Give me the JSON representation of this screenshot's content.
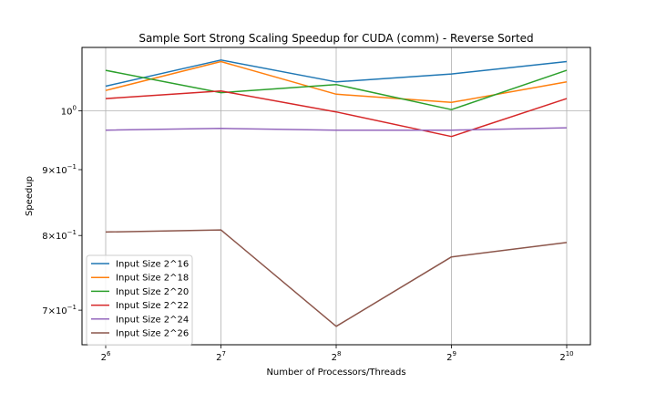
{
  "chart_data": {
    "type": "line",
    "title": "Sample Sort Strong Scaling Speedup for CUDA (comm) - Reverse Sorted",
    "xlabel": "Number of Processors/Threads",
    "ylabel": "Speedup",
    "x": [
      64,
      128,
      256,
      512,
      1024
    ],
    "x_tick_labels": [
      {
        "base": "2",
        "exp": "6"
      },
      {
        "base": "2",
        "exp": "7"
      },
      {
        "base": "2",
        "exp": "8"
      },
      {
        "base": "2",
        "exp": "9"
      },
      {
        "base": "2",
        "exp": "10"
      }
    ],
    "xscale": "log2",
    "yscale": "log",
    "ylim": [
      0.658,
      1.12
    ],
    "y_ticks": [
      {
        "value": 1.0,
        "base": "10",
        "exp": "0",
        "prefix": ""
      },
      {
        "value": 0.9,
        "base": "10",
        "exp": "−1",
        "prefix": "9×"
      },
      {
        "value": 0.8,
        "base": "10",
        "exp": "−1",
        "prefix": "8×"
      },
      {
        "value": 0.7,
        "base": "10",
        "exp": "−1",
        "prefix": "7×"
      }
    ],
    "grid": true,
    "legend_position": "lower-left",
    "series": [
      {
        "name": "Input Size 2^16",
        "color": "#1f77b4",
        "values": [
          1.045,
          1.095,
          1.053,
          1.068,
          1.092
        ]
      },
      {
        "name": "Input Size 2^18",
        "color": "#ff7f0e",
        "values": [
          1.037,
          1.092,
          1.03,
          1.015,
          1.053
        ]
      },
      {
        "name": "Input Size 2^20",
        "color": "#2ca02c",
        "values": [
          1.075,
          1.033,
          1.048,
          1.002,
          1.075
        ]
      },
      {
        "name": "Input Size 2^22",
        "color": "#d62728",
        "values": [
          1.022,
          1.036,
          0.998,
          0.955,
          1.022
        ]
      },
      {
        "name": "Input Size 2^24",
        "color": "#9467bd",
        "values": [
          0.966,
          0.969,
          0.966,
          0.966,
          0.97
        ]
      },
      {
        "name": "Input Size 2^26",
        "color": "#8c564b",
        "values": [
          0.805,
          0.808,
          0.68,
          0.77,
          0.79
        ]
      }
    ]
  }
}
